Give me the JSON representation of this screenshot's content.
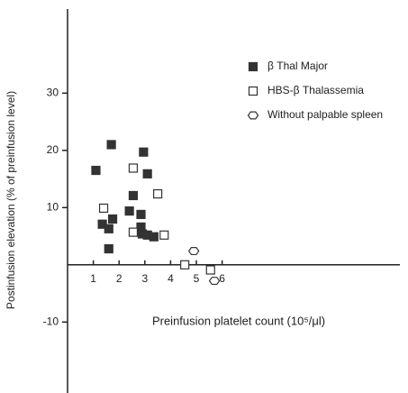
{
  "chart_data": {
    "type": "scatter",
    "x_label": "Preinfusion platelet count (10⁵/μl)",
    "y_label": "Postinfusion elevation (% of preinfusion level)",
    "xlim": [
      0,
      12.9
    ],
    "ylim": [
      -22.4,
      44.7
    ],
    "xticks": [
      1,
      2,
      3,
      4,
      5,
      6
    ],
    "yticks": [
      30,
      20,
      10,
      -10
    ],
    "legend": "top-right",
    "series": [
      {
        "name": "β Thal Major",
        "color": "#333333",
        "marker": "filled-square",
        "x": [
          1.1,
          1.7,
          1.35,
          1.75,
          1.6,
          1.6,
          2.4,
          2.55,
          2.95,
          3.1,
          2.85,
          2.85,
          2.9,
          3.1,
          3.35
        ],
        "values": [
          16.5,
          21,
          7.1,
          8,
          6.3,
          2.8,
          9.4,
          12.1,
          19.7,
          15.9,
          8.8,
          6.6,
          5.4,
          5.2,
          4.9
        ]
      },
      {
        "name": "HBS-β Thalassemia",
        "color": "#333333",
        "marker": "open-square",
        "x": [
          1.4,
          2.55,
          2.55,
          3.5,
          3.75,
          4.55,
          5.55
        ],
        "values": [
          9.9,
          16.9,
          5.7,
          12.4,
          5.2,
          0,
          -0.9
        ]
      },
      {
        "name": "Without palpable spleen",
        "color": "#333333",
        "marker": "hexagon",
        "x": [
          4.9,
          5.7
        ],
        "values": [
          2.4,
          -2.8
        ]
      }
    ]
  }
}
